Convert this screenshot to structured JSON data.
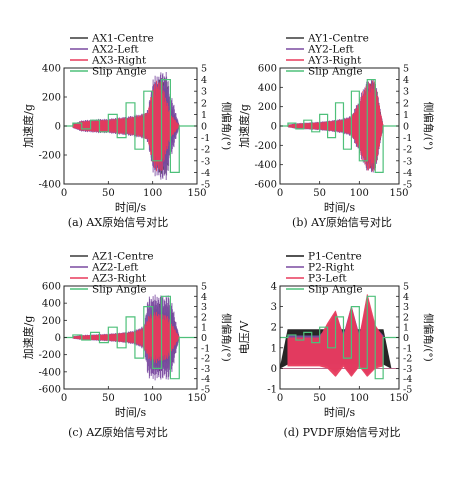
{
  "panels": [
    {
      "id": "a",
      "caption": "(a) AX原始信号对比",
      "xlabel": "时间/s",
      "ylabel_left": "加速度/g",
      "ylabel_right": "侧偏角/(°)",
      "xlim": [
        0,
        150
      ],
      "ylim_left": [
        -400,
        400
      ],
      "ylim_right": [
        -5,
        5
      ],
      "xticks": [
        0,
        50,
        100,
        150
      ],
      "yticks_left": [
        -400,
        -200,
        0,
        200,
        400
      ],
      "yticks_right": [
        -5,
        -4,
        -3,
        -2,
        -1,
        0,
        1,
        2,
        3,
        4,
        5
      ],
      "legend": [
        "AX1-Centre",
        "AX2-Left",
        "AX3-Right",
        "Slip Angle"
      ]
    },
    {
      "id": "b",
      "caption": "(b) AY原始信号对比",
      "xlabel": "时间/s",
      "ylabel_left": "加速度/g",
      "ylabel_right": "侧偏角/(°)",
      "xlim": [
        0,
        150
      ],
      "ylim_left": [
        -600,
        600
      ],
      "ylim_right": [
        -5,
        5
      ],
      "xticks": [
        0,
        50,
        100,
        150
      ],
      "yticks_left": [
        -600,
        -400,
        -200,
        0,
        200,
        400,
        600
      ],
      "yticks_right": [
        -5,
        -4,
        -3,
        -2,
        -1,
        0,
        1,
        2,
        3,
        4,
        5
      ],
      "legend": [
        "AY1-Centre",
        "AY2-Left",
        "AY3-Right",
        "Slip Angle"
      ]
    },
    {
      "id": "c",
      "caption": "(c) AZ原始信号对比",
      "xlabel": "时间/s",
      "ylabel_left": "加速度/g",
      "ylabel_right": "侧偏角/(°)",
      "xlim": [
        0,
        150
      ],
      "ylim_left": [
        -600,
        600
      ],
      "ylim_right": [
        -5,
        5
      ],
      "xticks": [
        0,
        50,
        100,
        150
      ],
      "yticks_left": [
        -600,
        -400,
        -200,
        0,
        200,
        400,
        600
      ],
      "yticks_right": [
        -5,
        -4,
        -3,
        -2,
        -1,
        0,
        1,
        2,
        3,
        4,
        5
      ],
      "legend": [
        "AZ1-Centre",
        "AZ2-Left",
        "AZ3-Right",
        "Slip Angle"
      ]
    },
    {
      "id": "d",
      "caption": "(d) PVDF原始信号对比",
      "xlabel": "时间/s",
      "ylabel_left": "电压/V",
      "ylabel_right": "侧偏角/(°)",
      "xlim": [
        0,
        150
      ],
      "ylim_left": [
        -1,
        4
      ],
      "ylim_right": [
        -5,
        5
      ],
      "xticks": [
        0,
        50,
        100,
        150
      ],
      "yticks_left": [
        -1,
        0,
        1,
        2,
        3,
        4
      ],
      "yticks_right": [
        -5,
        -4,
        -3,
        -2,
        -1,
        0,
        1,
        2,
        3,
        4,
        5
      ],
      "legend": [
        "P1-Centre",
        "P2-Right",
        "P3-Left",
        "Slip Angle"
      ]
    }
  ],
  "chart_data": [
    {
      "type": "line",
      "title": "(a) AX原始信号对比",
      "xlabel": "时间/s",
      "ylabel": "加速度/g",
      "y2label": "侧偏角/(°)",
      "xlim": [
        0,
        150
      ],
      "ylim": [
        -400,
        400
      ],
      "y2lim": [
        -5,
        5
      ],
      "series": [
        {
          "name": "AX1-Centre",
          "color": "#3a3a3a",
          "axis": "left",
          "x": [
            10,
            20,
            30,
            40,
            50,
            60,
            70,
            80,
            90,
            95,
            100,
            105,
            110,
            115,
            120,
            130
          ],
          "amplitude": [
            10,
            25,
            30,
            35,
            35,
            45,
            50,
            55,
            70,
            90,
            160,
            310,
            340,
            350,
            150,
            5
          ]
        },
        {
          "name": "AX2-Left",
          "color": "#7a4aa0",
          "axis": "left",
          "x": [
            10,
            20,
            30,
            40,
            50,
            60,
            70,
            80,
            90,
            95,
            100,
            105,
            110,
            115,
            120,
            130
          ],
          "amplitude": [
            15,
            40,
            45,
            50,
            50,
            60,
            65,
            75,
            90,
            120,
            330,
            360,
            380,
            390,
            240,
            5
          ]
        },
        {
          "name": "AX3-Right",
          "color": "#e83a5c",
          "axis": "left",
          "x": [
            10,
            20,
            30,
            40,
            50,
            60,
            70,
            80,
            90,
            95,
            100,
            105,
            110,
            115,
            120,
            130
          ],
          "amplitude": [
            12,
            35,
            40,
            45,
            45,
            55,
            60,
            70,
            85,
            110,
            280,
            320,
            330,
            200,
            90,
            5
          ]
        },
        {
          "name": "Slip Angle",
          "color": "#4ec07a",
          "axis": "right",
          "steps": [
            [
              0,
              0
            ],
            [
              10,
              0.25
            ],
            [
              20,
              -0.25
            ],
            [
              30,
              0.5
            ],
            [
              40,
              -0.5
            ],
            [
              50,
              1
            ],
            [
              60,
              -1
            ],
            [
              70,
              2
            ],
            [
              80,
              -2
            ],
            [
              90,
              3
            ],
            [
              100,
              -3
            ],
            [
              110,
              4
            ],
            [
              120,
              -4
            ],
            [
              130,
              0
            ],
            [
              150,
              0
            ]
          ]
        }
      ]
    },
    {
      "type": "line",
      "title": "(b) AY原始信号对比",
      "xlabel": "时间/s",
      "ylabel": "加速度/g",
      "y2label": "侧偏角/(°)",
      "xlim": [
        0,
        150
      ],
      "ylim": [
        -600,
        600
      ],
      "y2lim": [
        -5,
        5
      ],
      "series": [
        {
          "name": "AY1-Centre",
          "color": "#3a3a3a",
          "axis": "left",
          "x": [
            10,
            20,
            30,
            40,
            50,
            60,
            70,
            80,
            90,
            95,
            100,
            105,
            110,
            115,
            120,
            130
          ],
          "amplitude": [
            10,
            20,
            25,
            30,
            35,
            45,
            50,
            60,
            80,
            150,
            200,
            300,
            420,
            470,
            470,
            5
          ]
        },
        {
          "name": "AY2-Left",
          "color": "#7a4aa0",
          "axis": "left",
          "x": [
            10,
            20,
            30,
            40,
            50,
            60,
            70,
            80,
            90,
            95,
            100,
            105,
            110,
            115,
            120,
            130
          ],
          "amplitude": [
            15,
            30,
            35,
            40,
            45,
            55,
            65,
            80,
            110,
            200,
            280,
            400,
            480,
            490,
            490,
            5
          ]
        },
        {
          "name": "AY3-Right",
          "color": "#e83a5c",
          "axis": "left",
          "x": [
            10,
            20,
            30,
            40,
            50,
            60,
            70,
            80,
            90,
            95,
            100,
            105,
            110,
            115,
            120,
            130
          ],
          "amplitude": [
            12,
            25,
            30,
            35,
            40,
            50,
            60,
            70,
            100,
            180,
            260,
            380,
            470,
            480,
            470,
            5
          ]
        },
        {
          "name": "Slip Angle",
          "color": "#4ec07a",
          "axis": "right",
          "steps": [
            [
              0,
              0
            ],
            [
              10,
              0.25
            ],
            [
              20,
              -0.25
            ],
            [
              30,
              0.5
            ],
            [
              40,
              -0.5
            ],
            [
              50,
              1
            ],
            [
              60,
              -1
            ],
            [
              70,
              2
            ],
            [
              80,
              -2
            ],
            [
              90,
              3
            ],
            [
              100,
              -3
            ],
            [
              110,
              4
            ],
            [
              120,
              -4
            ],
            [
              130,
              0
            ],
            [
              150,
              0
            ]
          ]
        }
      ]
    },
    {
      "type": "line",
      "title": "(c) AZ原始信号对比",
      "xlabel": "时间/s",
      "ylabel": "加速度/g",
      "y2label": "侧偏角/(°)",
      "xlim": [
        0,
        150
      ],
      "ylim": [
        -600,
        600
      ],
      "y2lim": [
        -5,
        5
      ],
      "series": [
        {
          "name": "AZ1-Centre",
          "color": "#3a3a3a",
          "axis": "left",
          "x": [
            10,
            20,
            30,
            40,
            50,
            60,
            70,
            80,
            90,
            95,
            100,
            105,
            110,
            115,
            120,
            130
          ],
          "amplitude": [
            10,
            20,
            25,
            30,
            35,
            45,
            55,
            65,
            100,
            200,
            380,
            400,
            400,
            380,
            380,
            5
          ]
        },
        {
          "name": "AZ2-Left",
          "color": "#7a4aa0",
          "axis": "left",
          "x": [
            10,
            20,
            30,
            40,
            50,
            60,
            70,
            80,
            90,
            95,
            100,
            105,
            110,
            115,
            120,
            130
          ],
          "amplitude": [
            15,
            30,
            35,
            40,
            45,
            55,
            65,
            85,
            140,
            480,
            500,
            500,
            500,
            500,
            500,
            5
          ]
        },
        {
          "name": "AZ3-Right",
          "color": "#e83a5c",
          "axis": "left",
          "x": [
            10,
            20,
            30,
            40,
            50,
            60,
            70,
            80,
            90,
            95,
            100,
            105,
            110,
            115,
            120,
            130
          ],
          "amplitude": [
            12,
            25,
            30,
            35,
            40,
            50,
            60,
            75,
            120,
            250,
            300,
            300,
            280,
            280,
            200,
            5
          ]
        },
        {
          "name": "Slip Angle",
          "color": "#4ec07a",
          "axis": "right",
          "steps": [
            [
              0,
              0
            ],
            [
              10,
              0.25
            ],
            [
              20,
              -0.25
            ],
            [
              30,
              0.5
            ],
            [
              40,
              -0.5
            ],
            [
              50,
              1
            ],
            [
              60,
              -1
            ],
            [
              70,
              2
            ],
            [
              80,
              -2
            ],
            [
              90,
              3
            ],
            [
              100,
              -3
            ],
            [
              110,
              4
            ],
            [
              120,
              -4
            ],
            [
              130,
              0
            ],
            [
              150,
              0
            ]
          ]
        }
      ]
    },
    {
      "type": "line",
      "title": "(d) PVDF原始信号对比",
      "xlabel": "时间/s",
      "ylabel": "电压/V",
      "y2label": "侧偏角/(°)",
      "xlim": [
        0,
        150
      ],
      "ylim": [
        -1,
        4
      ],
      "y2lim": [
        -5,
        5
      ],
      "series": [
        {
          "name": "P1-Centre",
          "color": "#1a1a1a",
          "axis": "left",
          "x": [
            0,
            10,
            130,
            140,
            150
          ],
          "band": [
            [
              0,
              0
            ],
            [
              0.2,
              1.9
            ],
            [
              0.2,
              1.9
            ],
            [
              0,
              0
            ],
            [
              0,
              0
            ]
          ]
        },
        {
          "name": "P2-Right",
          "color": "#7a4aa0",
          "axis": "left",
          "x": [
            10,
            50,
            60,
            70,
            80,
            90,
            100,
            110,
            120,
            130
          ],
          "band": [
            [
              0.2,
              1.6
            ],
            [
              0.2,
              1.6
            ],
            [
              0.1,
              2.0
            ],
            [
              -0.2,
              2.7
            ],
            [
              0.2,
              1.6
            ],
            [
              -0.3,
              3.0
            ],
            [
              0.2,
              1.6
            ],
            [
              -0.3,
              3.2
            ],
            [
              0.1,
              2.0
            ],
            [
              0.2,
              1.6
            ]
          ]
        },
        {
          "name": "P3-Left",
          "color": "#e83a5c",
          "axis": "left",
          "x": [
            10,
            50,
            60,
            70,
            80,
            90,
            100,
            110,
            120,
            130
          ],
          "band": [
            [
              0.1,
              1.5
            ],
            [
              0.1,
              1.5
            ],
            [
              0.0,
              2.2
            ],
            [
              -0.4,
              2.8
            ],
            [
              0.1,
              1.5
            ],
            [
              -0.4,
              3.0
            ],
            [
              0.1,
              1.5
            ],
            [
              -0.4,
              3.6
            ],
            [
              0.0,
              2.1
            ],
            [
              0.1,
              1.5
            ]
          ]
        },
        {
          "name": "Slip Angle",
          "color": "#4ec07a",
          "axis": "right",
          "steps": [
            [
              0,
              0
            ],
            [
              10,
              0.25
            ],
            [
              20,
              -0.25
            ],
            [
              30,
              0.5
            ],
            [
              40,
              -0.5
            ],
            [
              50,
              1
            ],
            [
              60,
              -1
            ],
            [
              70,
              2
            ],
            [
              80,
              -2
            ],
            [
              90,
              3
            ],
            [
              100,
              -3
            ],
            [
              110,
              4
            ],
            [
              120,
              -4
            ],
            [
              130,
              0
            ],
            [
              150,
              0
            ]
          ]
        }
      ]
    }
  ]
}
